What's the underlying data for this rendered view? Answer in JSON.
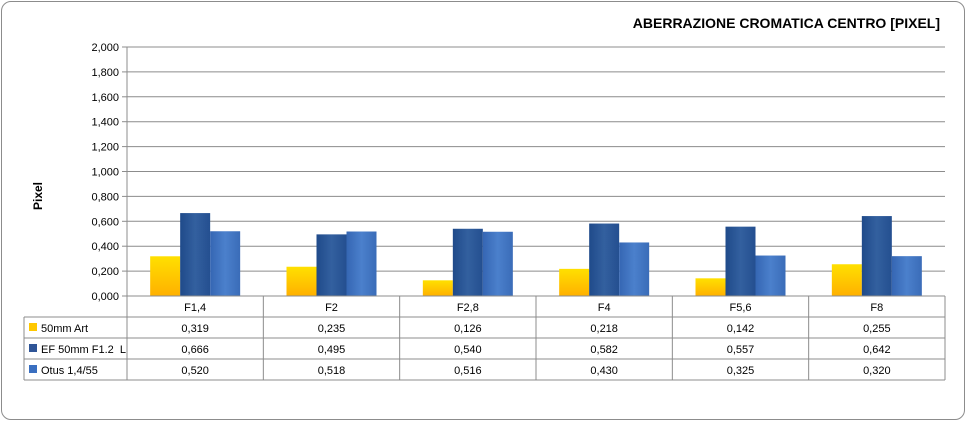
{
  "chart_data": {
    "type": "bar",
    "title": "ABERRAZIONE CROMATICA CENTRO [PIXEL]",
    "ylabel": "Pixel",
    "xlabel": "",
    "ylim": [
      0,
      2
    ],
    "yticks": [
      "0,000",
      "0,200",
      "0,400",
      "0,600",
      "0,800",
      "1,000",
      "1,200",
      "1,400",
      "1,600",
      "1,800",
      "2,000"
    ],
    "categories": [
      "F1,4",
      "F2",
      "F2,8",
      "F4",
      "F5,6",
      "F8"
    ],
    "grid": true,
    "legend": "data-table",
    "series": [
      {
        "name": "50mm Art",
        "color": "#ffc800",
        "values": [
          0.319,
          0.235,
          0.126,
          0.218,
          0.142,
          0.255
        ],
        "labels": [
          "0,319",
          "0,235",
          "0,126",
          "0,218",
          "0,142",
          "0,255"
        ]
      },
      {
        "name": "EF 50mm F1.2  L",
        "color": "#2f5597",
        "values": [
          0.666,
          0.495,
          0.54,
          0.582,
          0.557,
          0.642
        ],
        "labels": [
          "0,666",
          "0,495",
          "0,540",
          "0,582",
          "0,557",
          "0,642"
        ]
      },
      {
        "name": "Otus 1,4/55",
        "color": "#3a6fc0",
        "values": [
          0.52,
          0.518,
          0.516,
          0.43,
          0.325,
          0.32
        ],
        "labels": [
          "0,520",
          "0,518",
          "0,516",
          "0,430",
          "0,325",
          "0,320"
        ]
      }
    ]
  }
}
